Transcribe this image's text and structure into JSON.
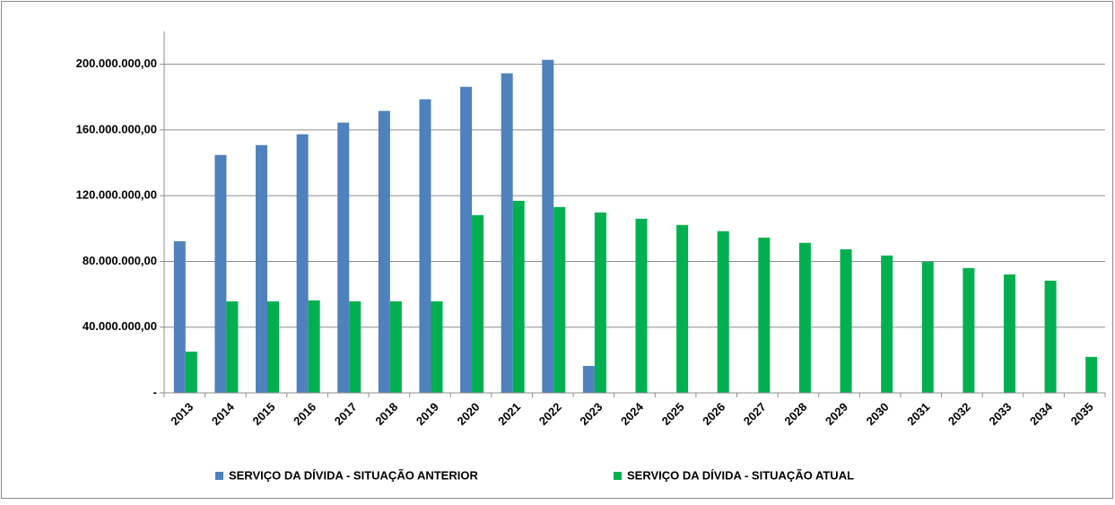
{
  "chart_data": {
    "type": "bar",
    "categories": [
      "2013",
      "2014",
      "2015",
      "2016",
      "2017",
      "2018",
      "2019",
      "2020",
      "2021",
      "2022",
      "2023",
      "2024",
      "2025",
      "2026",
      "2027",
      "2028",
      "2029",
      "2030",
      "2031",
      "2032",
      "2033",
      "2034",
      "2035"
    ],
    "series": [
      {
        "name": "SERVIÇO DA DÍVIDA - SITUAÇÃO ANTERIOR",
        "color": "#4f81bd",
        "values": [
          92300000,
          144800000,
          150800000,
          157400000,
          164500000,
          171600000,
          178700000,
          186300000,
          194500000,
          202700000,
          16400000,
          null,
          null,
          null,
          null,
          null,
          null,
          null,
          null,
          null,
          null,
          null,
          null
        ]
      },
      {
        "name": "SERVIÇO DA DÍVIDA - SITUAÇÃO ATUAL",
        "color": "#00b050",
        "values": [
          25100000,
          55700000,
          55700000,
          56300000,
          55700000,
          55700000,
          55700000,
          108200000,
          116900000,
          113100000,
          109800000,
          106000000,
          102200000,
          98400000,
          94500000,
          91300000,
          87400000,
          83600000,
          79800000,
          76000000,
          72100000,
          68300000,
          21900000
        ]
      }
    ],
    "ylim": [
      0,
      220000000
    ],
    "yticks": [
      {
        "value": 0,
        "label": "-"
      },
      {
        "value": 40000000,
        "label": "40.000.000,00"
      },
      {
        "value": 80000000,
        "label": "80.000.000,00"
      },
      {
        "value": 120000000,
        "label": "120.000.000,00"
      },
      {
        "value": 160000000,
        "label": "160.000.000,00"
      },
      {
        "value": 200000000,
        "label": "200.000.000,00"
      }
    ],
    "grid": true,
    "legend": "bottom"
  }
}
